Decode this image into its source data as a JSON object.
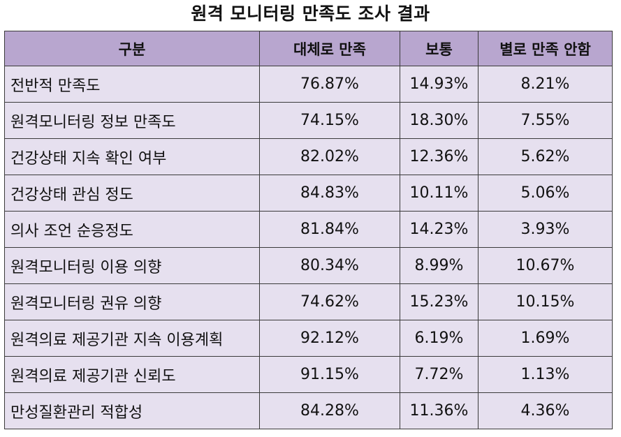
{
  "title": "원격 모니터링 만족도 조사 결과",
  "chart_data": {
    "type": "table",
    "title": "원격 모니터링 만족도 조사 결과",
    "columns": [
      "구분",
      "대체로 만족",
      "보통",
      "별로 만족 안함"
    ],
    "rows": [
      [
        "전반적 만족도",
        "76.87%",
        "14.93%",
        "8.21%"
      ],
      [
        "원격모니터링 정보 만족도",
        "74.15%",
        "18.30%",
        "7.55%"
      ],
      [
        "건강상태 지속 확인 여부",
        "82.02%",
        "12.36%",
        "5.62%"
      ],
      [
        "건강상태 관심 정도",
        "84.83%",
        "10.11%",
        "5.06%"
      ],
      [
        "의사 조언 순응정도",
        "81.84%",
        "14.23%",
        "3.93%"
      ],
      [
        "원격모니터링 이용 의향",
        "80.34%",
        "8.99%",
        "10.67%"
      ],
      [
        "원격모니터링 권유 의향",
        "74.62%",
        "15.23%",
        "10.15%"
      ],
      [
        "원격의료 제공기관 지속 이용계획",
        "92.12%",
        "6.19%",
        "1.69%"
      ],
      [
        "원격의료 제공기관 신뢰도",
        "91.15%",
        "7.72%",
        "1.13%"
      ],
      [
        "만성질환관리 적합성",
        "84.28%",
        "11.36%",
        "4.36%"
      ]
    ]
  },
  "colors": {
    "header_bg": "#b8a6cf",
    "row_bg": "#e6e0ef",
    "border": "#3a3a3a"
  }
}
